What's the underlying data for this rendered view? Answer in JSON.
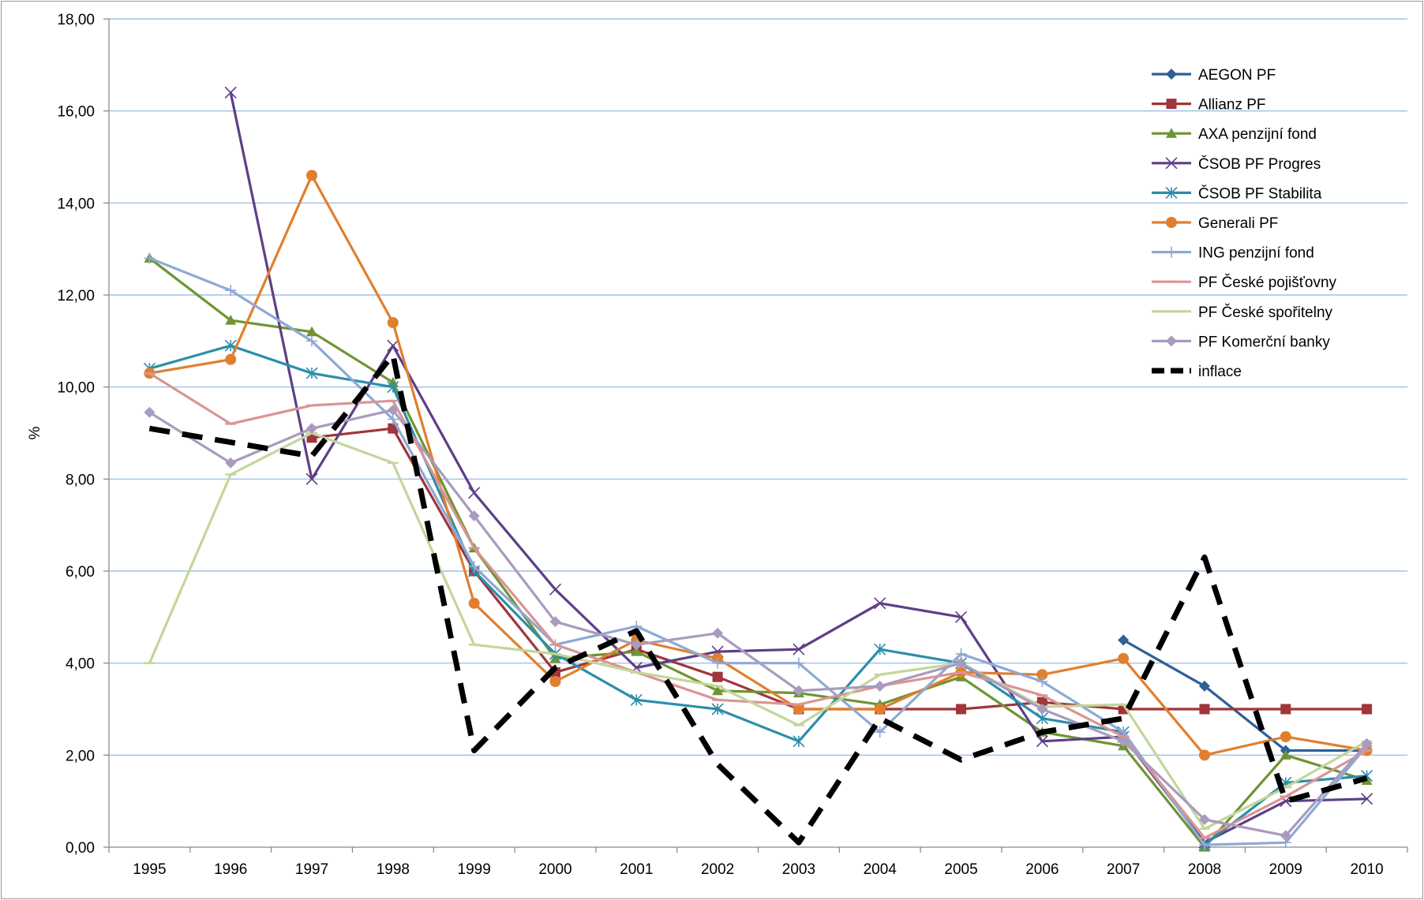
{
  "chart_data": {
    "type": "line",
    "title": "",
    "xlabel": "",
    "ylabel": "%",
    "ylim": [
      0,
      18
    ],
    "ytick_step": 2,
    "ytick_labels": [
      "0,00",
      "2,00",
      "4,00",
      "6,00",
      "8,00",
      "10,00",
      "12,00",
      "14,00",
      "16,00",
      "18,00"
    ],
    "categories": [
      "1995",
      "1996",
      "1997",
      "1998",
      "1999",
      "2000",
      "2001",
      "2002",
      "2003",
      "2004",
      "2005",
      "2006",
      "2007",
      "2008",
      "2009",
      "2010"
    ],
    "grid": "horizontal",
    "legend_position": "right",
    "series": [
      {
        "name": "AEGON PF",
        "color": "#2F5F98",
        "marker": "diamond",
        "dash": false,
        "values": [
          null,
          null,
          null,
          null,
          null,
          null,
          null,
          null,
          null,
          null,
          null,
          null,
          4.5,
          3.5,
          2.1,
          2.1
        ]
      },
      {
        "name": "Allianz PF",
        "color": "#A0353A",
        "marker": "square",
        "dash": false,
        "values": [
          null,
          null,
          8.9,
          9.1,
          6.0,
          3.8,
          4.3,
          3.7,
          3.0,
          3.0,
          3.0,
          3.15,
          3.0,
          3.0,
          3.0,
          3.0
        ]
      },
      {
        "name": "AXA penzijní fond",
        "color": "#6E9433",
        "marker": "triangle",
        "dash": false,
        "values": [
          12.8,
          11.45,
          11.2,
          10.1,
          6.5,
          4.1,
          4.25,
          3.4,
          3.35,
          3.1,
          3.7,
          2.5,
          2.2,
          0.0,
          2.0,
          1.45
        ]
      },
      {
        "name": "ČSOB PF Progres",
        "color": "#5E3F87",
        "marker": "x",
        "dash": false,
        "values": [
          null,
          16.4,
          8.0,
          10.9,
          7.7,
          5.6,
          3.9,
          4.25,
          4.3,
          5.3,
          5.0,
          2.3,
          2.4,
          0.1,
          1.0,
          1.05
        ]
      },
      {
        "name": "ČSOB PF Stabilita",
        "color": "#2C8EA9",
        "marker": "star",
        "dash": false,
        "values": [
          10.4,
          10.9,
          10.3,
          10.0,
          6.0,
          4.2,
          3.2,
          3.0,
          2.3,
          4.3,
          4.0,
          2.8,
          2.5,
          0.05,
          1.4,
          1.55
        ]
      },
      {
        "name": "Generali PF",
        "color": "#E07F2E",
        "marker": "circle",
        "dash": false,
        "values": [
          10.3,
          10.6,
          14.6,
          11.4,
          5.3,
          3.6,
          4.5,
          4.1,
          3.0,
          3.0,
          3.8,
          3.75,
          4.1,
          2.0,
          2.4,
          2.1
        ]
      },
      {
        "name": "ING penzijní fond",
        "color": "#8EA9D6",
        "marker": "plus",
        "dash": false,
        "values": [
          12.8,
          12.1,
          11.0,
          9.3,
          6.1,
          4.4,
          4.8,
          4.0,
          4.0,
          2.5,
          4.2,
          3.6,
          2.5,
          0.05,
          0.1,
          2.2
        ]
      },
      {
        "name": "PF České pojišťovny",
        "color": "#D99594",
        "marker": "dash",
        "dash": false,
        "values": [
          10.3,
          9.2,
          9.6,
          9.7,
          6.5,
          4.4,
          3.8,
          3.2,
          3.1,
          3.5,
          3.8,
          3.3,
          2.4,
          0.2,
          1.1,
          2.1
        ]
      },
      {
        "name": "PF České spořitelny",
        "color": "#C3D69B",
        "marker": "dash",
        "dash": false,
        "values": [
          4.0,
          8.1,
          9.0,
          8.35,
          4.4,
          4.2,
          3.8,
          3.5,
          2.65,
          3.75,
          4.0,
          3.05,
          3.1,
          0.4,
          1.3,
          2.3
        ]
      },
      {
        "name": "PF Komerční banky",
        "color": "#A99BBD",
        "marker": "diamond",
        "dash": false,
        "values": [
          9.45,
          8.35,
          9.1,
          9.5,
          7.2,
          4.9,
          4.4,
          4.65,
          3.4,
          3.5,
          4.0,
          3.0,
          2.3,
          0.6,
          0.25,
          2.25
        ]
      },
      {
        "name": "inflace",
        "color": "#000000",
        "marker": "none",
        "dash": true,
        "values": [
          9.1,
          8.8,
          8.5,
          10.7,
          2.1,
          3.9,
          4.7,
          1.8,
          0.1,
          2.8,
          1.9,
          2.5,
          2.8,
          6.3,
          1.0,
          1.5
        ]
      }
    ]
  }
}
